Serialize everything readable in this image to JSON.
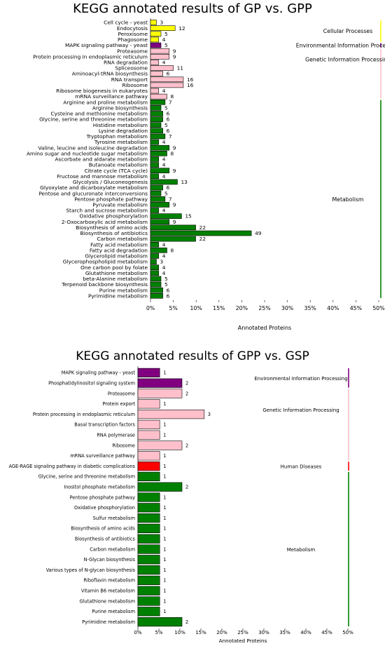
{
  "charts": [
    {
      "title": "KEGG annotated results of GP vs. GPP",
      "xlabel": "Annotated Proteins",
      "xticks": [
        "0%",
        "5%",
        "10%",
        "15%",
        "20%",
        "25%",
        "30%",
        "35%",
        "40%",
        "45%",
        "50%"
      ],
      "groups": [
        {
          "name": "Cellular Processes",
          "color": "#ffff00"
        },
        {
          "name": "Environmental Information Processing",
          "color": "#800080"
        },
        {
          "name": "Genetic Information Processing",
          "color": "#ffc0cb"
        },
        {
          "name": "Metabolism",
          "color": "#008000"
        }
      ]
    },
    {
      "title": "KEGG annotated results of GPP vs. GSP",
      "xlabel": "Annotated Proteins",
      "xticks": [
        "0%",
        "5%",
        "10%",
        "15%",
        "20%",
        "25%",
        "30%",
        "35%",
        "40%",
        "45%",
        "50%"
      ],
      "groups": [
        {
          "name": "Environmental Information Processing",
          "color": "#800080"
        },
        {
          "name": "Genetic Information Processing",
          "color": "#ffc0cb"
        },
        {
          "name": "Human Diseases",
          "color": "#ff0000"
        },
        {
          "name": "Metabolism",
          "color": "#008000"
        }
      ]
    }
  ],
  "chart_data": [
    {
      "type": "bar",
      "orientation": "horizontal",
      "title": "KEGG annotated results of GP vs. GPP",
      "xlabel": "Annotated Proteins",
      "xlim": [
        0,
        50
      ],
      "x_unit": "percent",
      "categories": [
        "Cell cycle - yeast",
        "Endocytosis",
        "Peroxisome",
        "Phagosome",
        "MAPK signaling pathway - yeast",
        "Proteasome",
        "Protein processing in endoplasmic reticulum",
        "RNA degradation",
        "Spliceosome",
        "Aminoacyl-tRNA biosynthesis",
        "RNA transport",
        "Ribosome",
        "Ribosome biogenesis in eukaryotes",
        "mRNA surveillance pathway",
        "Arginine and proline metabolism",
        "Arginine biosynthesis",
        "Cysteine and methionine metabolism",
        "Glycine, serine and threonine metabolism",
        "Histidine metabolism",
        "Lysine degradation",
        "Tryptophan metabolism",
        "Tyrosine metabolism",
        "Valine, leucine and isoleucine degradation",
        "Amino sugar and nucleotide sugar metabolism",
        "Ascorbate and aldarate metabolism",
        "Butanoate metabolism",
        "Citrate cycle (TCA cycle)",
        "Fructose and mannose metabolism",
        "Glycolysis / Gluconeogenesis",
        "Glyoxylate and dicarboxylate metabolism",
        "Pentose and glucuronate interconversions",
        "Pentose phosphate pathway",
        "Pyruvate metabolism",
        "Starch and sucrose metabolism",
        "Oxidative phosphorylation",
        "2-Oxocarboxylic acid metabolism",
        "Biosynthesis of amino acids",
        "Biosynthesis of antibiotics",
        "Carbon metabolism",
        "Fatty acid metabolism",
        "Fatty acid degradation",
        "Glycerolipid metabolism",
        "Glycerophospholipid metabolism",
        "One carbon pool by folate",
        "Glutathione metabolism",
        "beta-Alanine metabolism",
        "Terpenoid backbone biosynthesis",
        "Purine metabolism",
        "Pyrimidine metabolism"
      ],
      "counts": [
        3,
        12,
        5,
        4,
        5,
        9,
        9,
        4,
        11,
        6,
        16,
        16,
        4,
        8,
        7,
        5,
        6,
        6,
        5,
        6,
        7,
        4,
        9,
        8,
        4,
        4,
        9,
        4,
        13,
        6,
        5,
        7,
        9,
        4,
        15,
        9,
        22,
        49,
        22,
        4,
        8,
        4,
        3,
        4,
        4,
        5,
        5,
        6,
        6
      ],
      "percent": [
        1.3,
        5.4,
        2.3,
        1.8,
        2.3,
        4.1,
        4.1,
        1.8,
        5.0,
        2.7,
        7.2,
        7.2,
        1.8,
        3.6,
        3.2,
        2.3,
        2.7,
        2.7,
        2.3,
        2.7,
        3.2,
        1.8,
        4.1,
        3.6,
        1.8,
        1.8,
        4.1,
        1.8,
        5.9,
        2.7,
        2.3,
        3.2,
        4.1,
        1.8,
        6.8,
        4.1,
        9.9,
        22.1,
        9.9,
        1.8,
        3.6,
        1.8,
        1.3,
        1.8,
        1.8,
        2.3,
        2.3,
        2.7,
        2.7
      ],
      "group": [
        "Cellular Processes",
        "Cellular Processes",
        "Cellular Processes",
        "Cellular Processes",
        "Environmental Information Processing",
        "Genetic Information Processing",
        "Genetic Information Processing",
        "Genetic Information Processing",
        "Genetic Information Processing",
        "Genetic Information Processing",
        "Genetic Information Processing",
        "Genetic Information Processing",
        "Genetic Information Processing",
        "Genetic Information Processing",
        "Metabolism",
        "Metabolism",
        "Metabolism",
        "Metabolism",
        "Metabolism",
        "Metabolism",
        "Metabolism",
        "Metabolism",
        "Metabolism",
        "Metabolism",
        "Metabolism",
        "Metabolism",
        "Metabolism",
        "Metabolism",
        "Metabolism",
        "Metabolism",
        "Metabolism",
        "Metabolism",
        "Metabolism",
        "Metabolism",
        "Metabolism",
        "Metabolism",
        "Metabolism",
        "Metabolism",
        "Metabolism",
        "Metabolism",
        "Metabolism",
        "Metabolism",
        "Metabolism",
        "Metabolism",
        "Metabolism",
        "Metabolism",
        "Metabolism",
        "Metabolism",
        "Metabolism"
      ]
    },
    {
      "type": "bar",
      "orientation": "horizontal",
      "title": "KEGG annotated results of GPP vs. GSP",
      "xlabel": "Annotated Proteins",
      "xlim": [
        0,
        50
      ],
      "x_unit": "percent",
      "categories": [
        "MAPK signaling pathway - yeast",
        "Phosphatidylinositol signaling system",
        "Proteasome",
        "Protein export",
        "Protein processing in endoplasmic reticulum",
        "Basal transcription factors",
        "RNA polymerase",
        "Ribosome",
        "mRNA surveillance pathway",
        "AGE-RAGE signaling pathway in diabetic complications",
        "Glycine, serine and threonine metabolism",
        "Inositol phosphate metabolism",
        "Pentose phosphate pathway",
        "Oxidative phosphorylation",
        "Sulfur metabolism",
        "Biosynthesis of amino acids",
        "Biosynthesis of antibiotics",
        "Carbon metabolism",
        "N-Glycan biosynthesis",
        "Various types of N-glycan biosynthesis",
        "Riboflavin metabolism",
        "Vitamin B6 metabolism",
        "Glutathione metabolism",
        "Purine metabolism",
        "Pyrimidine metabolism"
      ],
      "counts": [
        1,
        2,
        2,
        1,
        3,
        1,
        1,
        2,
        1,
        1,
        1,
        2,
        1,
        1,
        1,
        1,
        1,
        1,
        1,
        1,
        1,
        1,
        1,
        1,
        2
      ],
      "percent": [
        5.2,
        10.5,
        10.5,
        5.2,
        15.8,
        5.2,
        5.2,
        10.5,
        5.2,
        5.2,
        5.2,
        10.5,
        5.2,
        5.2,
        5.2,
        5.2,
        5.2,
        5.2,
        5.2,
        5.2,
        5.2,
        5.2,
        5.2,
        5.2,
        10.5
      ],
      "group": [
        "Environmental Information Processing",
        "Environmental Information Processing",
        "Genetic Information Processing",
        "Genetic Information Processing",
        "Genetic Information Processing",
        "Genetic Information Processing",
        "Genetic Information Processing",
        "Genetic Information Processing",
        "Genetic Information Processing",
        "Human Diseases",
        "Metabolism",
        "Metabolism",
        "Metabolism",
        "Metabolism",
        "Metabolism",
        "Metabolism",
        "Metabolism",
        "Metabolism",
        "Metabolism",
        "Metabolism",
        "Metabolism",
        "Metabolism",
        "Metabolism",
        "Metabolism",
        "Metabolism"
      ]
    }
  ]
}
